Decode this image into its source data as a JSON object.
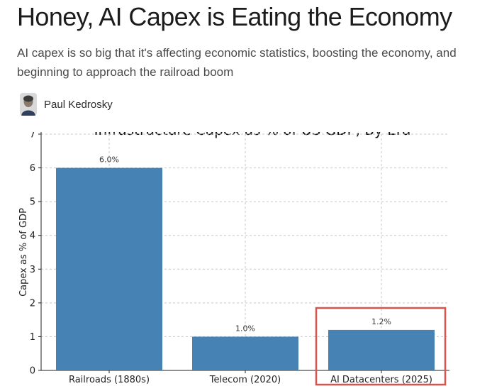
{
  "article": {
    "headline": "Honey, AI Capex is Eating the Economy",
    "subtitle": "AI capex is so big that it's affecting economic statistics, boosting the economy, and beginning to approach the railroad boom",
    "author": "Paul Kedrosky"
  },
  "colors": {
    "bar": "#4682b4",
    "highlight_box": "#d9534f",
    "grid": "#c8c8c8",
    "text": "#1c1c1c"
  },
  "chart_data": {
    "type": "bar",
    "title": "Infrastructure Capex as % of US GDP, By Era",
    "ylabel": "Capex as % of GDP",
    "xlabel": "",
    "categories": [
      "Railroads (1880s)",
      "Telecom (2020)",
      "AI Datacenters (2025)"
    ],
    "values": [
      6.0,
      1.0,
      1.2
    ],
    "value_labels": [
      "6.0%",
      "1.0%",
      "1.2%"
    ],
    "ylim": [
      0,
      7
    ],
    "yticks": [
      0,
      1,
      2,
      3,
      4,
      5,
      6,
      7
    ],
    "grid": true,
    "highlighted_category": "AI Datacenters (2025)"
  }
}
